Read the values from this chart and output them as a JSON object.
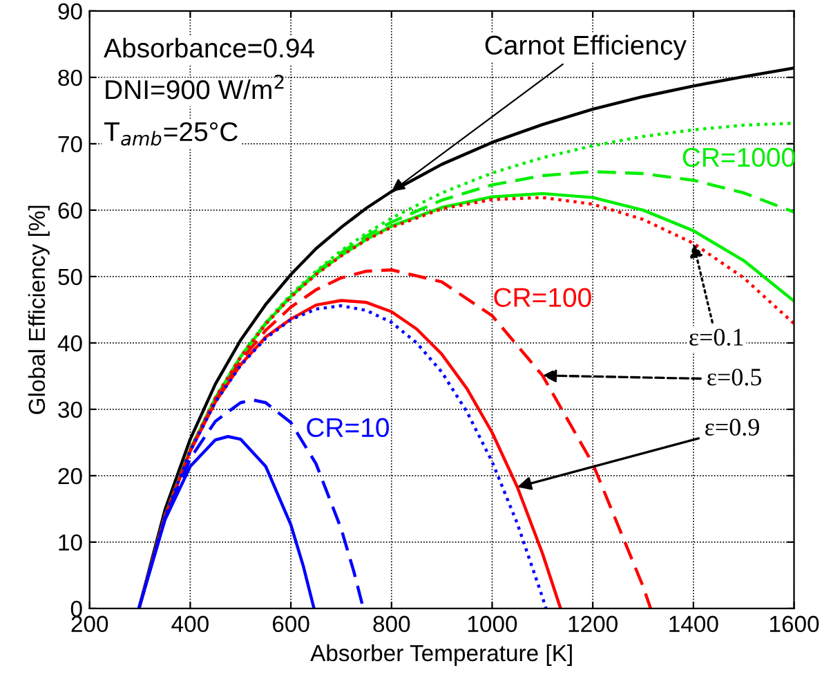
{
  "chart_data": {
    "type": "line",
    "xlabel": "Absorber Temperature [K]",
    "ylabel": "Global Efficiency [%]",
    "xlim": [
      200,
      1600
    ],
    "ylim": [
      0,
      90
    ],
    "xticks": [
      200,
      400,
      600,
      800,
      1000,
      1200,
      1400,
      1600
    ],
    "yticks": [
      0,
      10,
      20,
      30,
      40,
      50,
      60,
      70,
      80,
      90
    ],
    "grid": true,
    "legend": false,
    "marker": "none",
    "series": [
      {
        "color": "#000000",
        "line_style": "solid",
        "x": [
          298,
          350,
          400,
          450,
          500,
          550,
          600,
          650,
          700,
          750,
          800,
          900,
          1000,
          1100,
          1200,
          1300,
          1400,
          1500,
          1600
        ],
        "values": [
          0,
          14.9,
          25.5,
          33.8,
          40.4,
          45.8,
          50.3,
          54.2,
          57.4,
          60.3,
          62.8,
          66.9,
          70.2,
          72.9,
          75.2,
          77.1,
          78.7,
          80.1,
          81.4
        ]
      },
      {
        "color": "#00ee00",
        "line_style": "dotted",
        "x": [
          298,
          350,
          400,
          450,
          500,
          550,
          600,
          650,
          700,
          750,
          800,
          900,
          1000,
          1100,
          1200,
          1300,
          1400,
          1500,
          1600
        ],
        "values": [
          0,
          14.0,
          24.0,
          31.8,
          38.0,
          43.1,
          47.3,
          50.8,
          53.9,
          56.5,
          58.8,
          62.6,
          65.6,
          67.9,
          69.7,
          71.1,
          72.1,
          72.8,
          73.1
        ]
      },
      {
        "color": "#00ee00",
        "line_style": "dashed",
        "x": [
          298,
          350,
          400,
          450,
          500,
          550,
          600,
          650,
          700,
          750,
          800,
          900,
          1000,
          1100,
          1200,
          1300,
          1400,
          1500,
          1600
        ],
        "values": [
          0,
          14.0,
          24.0,
          31.7,
          37.9,
          43.0,
          47.1,
          50.6,
          53.6,
          56.1,
          58.2,
          61.5,
          63.8,
          65.2,
          65.8,
          65.5,
          64.5,
          62.6,
          59.7
        ]
      },
      {
        "color": "#00ee00",
        "line_style": "solid",
        "x": [
          298,
          350,
          400,
          450,
          500,
          550,
          600,
          650,
          700,
          750,
          800,
          900,
          1000,
          1100,
          1200,
          1300,
          1400,
          1500,
          1600
        ],
        "values": [
          0,
          14.0,
          23.9,
          31.7,
          37.9,
          42.9,
          47.0,
          50.4,
          53.2,
          55.6,
          57.6,
          60.4,
          62.0,
          62.5,
          61.9,
          60.0,
          56.9,
          52.4,
          46.3
        ]
      },
      {
        "color": "#ff0000",
        "line_style": "dotted",
        "x": [
          298,
          350,
          400,
          450,
          500,
          550,
          600,
          650,
          700,
          750,
          800,
          900,
          1000,
          1100,
          1200,
          1300,
          1400,
          1500,
          1600
        ],
        "values": [
          0,
          14.0,
          23.9,
          31.7,
          37.8,
          42.8,
          46.9,
          50.3,
          53.1,
          55.5,
          57.4,
          60.2,
          61.6,
          61.9,
          60.9,
          58.6,
          55.0,
          49.8,
          42.9
        ]
      },
      {
        "color": "#ff0000",
        "line_style": "dashed",
        "x": [
          298,
          350,
          400,
          450,
          500,
          550,
          600,
          650,
          700,
          750,
          800,
          900,
          1000,
          1100,
          1200,
          1300,
          1315
        ],
        "values": [
          0,
          13.9,
          23.8,
          31.4,
          37.3,
          41.9,
          45.4,
          48.0,
          49.8,
          50.8,
          51.0,
          49.2,
          44.1,
          35.1,
          21.8,
          3.3,
          0
        ]
      },
      {
        "color": "#ff0000",
        "line_style": "solid",
        "x": [
          298,
          350,
          400,
          450,
          500,
          550,
          600,
          650,
          700,
          750,
          800,
          850,
          900,
          950,
          1000,
          1050,
          1100,
          1136
        ],
        "values": [
          0,
          13.9,
          23.7,
          31.1,
          36.7,
          40.9,
          43.6,
          45.7,
          46.4,
          46.1,
          44.7,
          42.1,
          38.3,
          33.1,
          26.5,
          18.3,
          8.3,
          0
        ]
      },
      {
        "color": "#0000ff",
        "line_style": "dotted",
        "x": [
          298,
          350,
          400,
          450,
          500,
          550,
          600,
          650,
          700,
          750,
          800,
          850,
          900,
          950,
          1000,
          1050,
          1100,
          1107
        ],
        "values": [
          0,
          13.9,
          23.7,
          31.1,
          36.6,
          40.7,
          43.5,
          45.1,
          45.6,
          44.9,
          43.1,
          40.0,
          35.6,
          29.6,
          22.1,
          12.8,
          1.7,
          0
        ]
      },
      {
        "color": "#0000ff",
        "line_style": "dashed",
        "x": [
          298,
          350,
          400,
          450,
          500,
          525,
          550,
          600,
          650,
          700,
          725,
          744
        ],
        "values": [
          0,
          13.6,
          22.6,
          28.2,
          31.0,
          31.4,
          31.0,
          28.0,
          21.8,
          12.0,
          5.6,
          0
        ]
      },
      {
        "color": "#0000ff",
        "line_style": "solid",
        "x": [
          298,
          350,
          400,
          450,
          475,
          500,
          550,
          600,
          625,
          646
        ],
        "values": [
          0,
          13.4,
          21.4,
          25.4,
          25.9,
          25.5,
          21.4,
          12.6,
          6.3,
          0
        ]
      }
    ],
    "annotations": [
      "Absorbance=0.94",
      "DNI=900 W/m$^{2}$",
      "T$_{amb}$=25°C",
      {
        "text": "Carnot Efficiency",
        "x": 800,
        "y": 62.8
      },
      {
        "text": "ε=0.1",
        "x": 1400,
        "y": 55.0
      },
      {
        "text": "ε=0.5",
        "x": 1100,
        "y": 35.1
      },
      {
        "text": "ε=0.9",
        "x": 1050,
        "y": 18.3
      },
      "CR=1000",
      "CR=100",
      "CR=10"
    ]
  }
}
